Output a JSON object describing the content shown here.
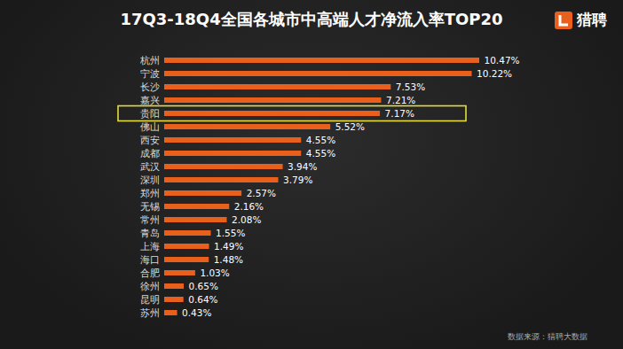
{
  "chart_data": {
    "type": "bar",
    "orientation": "horizontal",
    "title": "17Q3-18Q4全国各城市中高端人才净流入率TOP20",
    "logo": "猎聘",
    "source": "数据来源：猎聘大数据",
    "categories": [
      "杭州",
      "宁波",
      "长沙",
      "嘉兴",
      "贵阳",
      "佛山",
      "西安",
      "成都",
      "武汉",
      "深圳",
      "郑州",
      "无锡",
      "常州",
      "青岛",
      "上海",
      "海口",
      "合肥",
      "徐州",
      "昆明",
      "苏州"
    ],
    "values": [
      10.47,
      10.22,
      7.53,
      7.21,
      7.17,
      5.52,
      4.55,
      4.55,
      3.94,
      3.79,
      2.57,
      2.16,
      2.08,
      1.55,
      1.49,
      1.48,
      1.03,
      0.65,
      0.64,
      0.43
    ],
    "value_labels": [
      "10.47%",
      "10.22%",
      "7.53%",
      "7.21%",
      "7.17%",
      "5.52%",
      "4.55%",
      "4.55%",
      "3.94%",
      "3.79%",
      "2.57%",
      "2.16%",
      "2.08%",
      "1.55%",
      "1.49%",
      "1.48%",
      "1.03%",
      "0.65%",
      "0.64%",
      "0.43%"
    ],
    "color": "#e8601c",
    "data_labels": true,
    "tick_labels": "y",
    "grid": false,
    "annotations": [
      {
        "category": "贵阳",
        "color": "#e6dc3a"
      }
    ]
  }
}
